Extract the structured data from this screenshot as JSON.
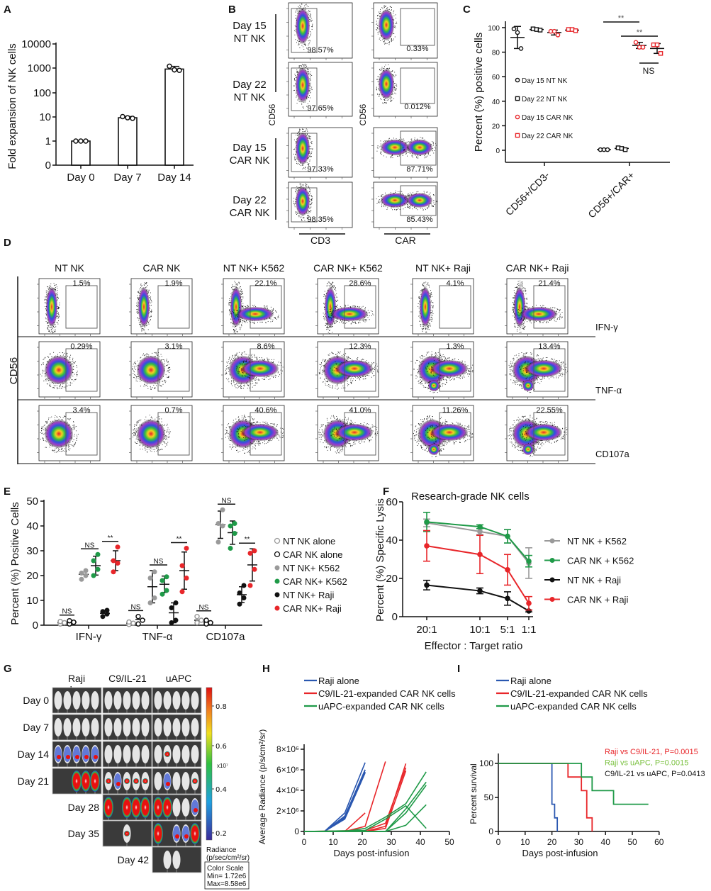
{
  "panel_labels": [
    "A",
    "B",
    "C",
    "D",
    "E",
    "F",
    "G",
    "H",
    "I"
  ],
  "panel_b": {
    "row_labels": [
      [
        "Day 15",
        "NT NK"
      ],
      [
        "Day 22",
        "NT NK"
      ],
      [
        "Day 15",
        "CAR NK"
      ],
      [
        "Day 22",
        "CAR NK"
      ]
    ],
    "x_labels": [
      "CD3",
      "CAR"
    ],
    "y_label": "CD56",
    "gate_percent": [
      [
        "98.57%",
        "97.65%",
        "97.33%",
        "98.35%"
      ],
      [
        "0.33%",
        "0.012%",
        "87.71%",
        "85.43%"
      ]
    ]
  },
  "panel_d": {
    "columns": [
      "NT NK",
      "CAR NK",
      "NT NK+ K562",
      "CAR NK+ K562",
      "NT NK+ Raji",
      "CAR NK+ Raji"
    ],
    "rows": [
      "IFN-γ",
      "TNF-α",
      "CD107a"
    ],
    "y_label": "CD56",
    "gate_percent": [
      [
        "1.5%",
        "1.9%",
        "22.1%",
        "28.6%",
        "4.1%",
        "21.4%"
      ],
      [
        "0.29%",
        "3.1%",
        "8.6%",
        "12.3%",
        "1.3%",
        "13.4%"
      ],
      [
        "3.4%",
        "0.7%",
        "40.6%",
        "41.0%",
        "11.26%",
        "22.55%"
      ]
    ]
  },
  "panel_g": {
    "columns": [
      [
        "Raji",
        "alone"
      ],
      [
        "C9/IL-21"
      ],
      [
        "uAPC"
      ]
    ],
    "rows": [
      "Day 0",
      "Day 7",
      "Day 14",
      "Day 21",
      "Day 28",
      "Day 35",
      "Day 42"
    ],
    "colorbar_ticks": [
      "0.8",
      "0.6",
      "0.4",
      "0.2"
    ],
    "colorbar_multiplier": "x10⁷",
    "radiance_label": [
      "Radiance",
      "(p/sec/cm²/sr)"
    ],
    "color_scale": [
      "Color Scale",
      "Min= 1.72e6",
      "Max=8.58e6"
    ]
  },
  "colors": {
    "black": "#111111",
    "red": "#e8262a",
    "green": "#1f9a48",
    "grey": "#9a9a9a",
    "blue": "#2a57b0",
    "lightgreen": "#7cc242"
  },
  "chart_data": [
    {
      "panel": "A",
      "type": "bar",
      "categories": [
        "Day 0",
        "Day 7",
        "Day 14"
      ],
      "values": [
        1,
        9,
        880
      ],
      "error": [
        0.05,
        1,
        250
      ],
      "points": [
        [
          1,
          1,
          1
        ],
        [
          10,
          9,
          8.5
        ],
        [
          1150,
          820,
          780
        ]
      ],
      "ylabel": "Fold expansion of NK cells",
      "yscale": "log",
      "yticks": [
        "0",
        "1",
        "10",
        "100",
        "1000",
        "10000"
      ]
    },
    {
      "panel": "C",
      "type": "scatter",
      "categories": [
        "CD56+/CD3-",
        "CD56+/CAR+"
      ],
      "ylabel": "Percent (%) positive cells",
      "ylim": [
        0,
        100
      ],
      "yticks": [
        "0",
        "20",
        "40",
        "60",
        "80",
        "100"
      ],
      "series": [
        {
          "name": "Day 15 NT NK",
          "color": "black",
          "marker": "circle",
          "means": [
            92,
            0.5
          ],
          "sd": [
            9,
            0.3
          ],
          "points": [
            [
              99,
              96,
              83
            ],
            [
              0.5,
              0.5,
              0.5
            ]
          ]
        },
        {
          "name": "Day 22 NT NK",
          "color": "black",
          "marker": "square",
          "means": [
            98.5,
            1.5
          ],
          "sd": [
            0.8,
            0.8
          ],
          "points": [
            [
              99,
              98.5,
              98
            ],
            [
              2,
              1.5,
              0.5
            ]
          ]
        },
        {
          "name": "Day 15 CAR NK",
          "color": "red",
          "marker": "circle",
          "means": [
            96,
            85.5
          ],
          "sd": [
            2,
            2.5
          ],
          "points": [
            [
              97,
              97,
              94
            ],
            [
              88,
              84,
              84
            ]
          ]
        },
        {
          "name": "Day 22 CAR NK",
          "color": "red",
          "marker": "square",
          "means": [
            98,
            83
          ],
          "sd": [
            0.8,
            4
          ],
          "points": [
            [
              98.5,
              98.5,
              97.5
            ],
            [
              86,
              86,
              79
            ]
          ]
        }
      ],
      "annotations": [
        {
          "label": "**",
          "between": [
            "Day 15 NT NK",
            "Day 15 CAR NK"
          ],
          "category": "CD56+/CAR+"
        },
        {
          "label": "**",
          "between": [
            "Day 22 NT NK",
            "Day 22 CAR NK"
          ],
          "category": "CD56+/CAR+"
        },
        {
          "label": "NS",
          "between": [
            "Day 15 CAR NK",
            "Day 22 CAR NK"
          ],
          "category": "CD56+/CAR+"
        }
      ]
    },
    {
      "panel": "E",
      "type": "scatter",
      "categories": [
        "IFN-γ",
        "TNF-α",
        "CD107a"
      ],
      "ylabel": "Percent (%) Positive Cells",
      "ylim": [
        0,
        50
      ],
      "yticks": [
        "0",
        "10",
        "20",
        "30",
        "40",
        "50"
      ],
      "series": [
        {
          "name": "NT NK alone",
          "color": "grey",
          "marker": "open",
          "means": [
            1,
            0.8,
            2
          ],
          "sd": [
            0.5,
            0.5,
            1
          ],
          "points": [
            [
              0.5,
              1,
              1.5
            ],
            [
              0.3,
              0.8,
              1.3
            ],
            [
              1,
              2,
              3.5
            ]
          ]
        },
        {
          "name": "CAR NK alone",
          "color": "black",
          "marker": "open",
          "means": [
            1.2,
            2.3,
            1.2
          ],
          "sd": [
            0.6,
            1.3,
            0.6
          ],
          "points": [
            [
              0.5,
              1.2,
              1.8
            ],
            [
              0.5,
              2,
              3.5
            ],
            [
              0.5,
              1,
              2
            ]
          ]
        },
        {
          "name": "NT NK+ K562",
          "color": "grey",
          "marker": "filled",
          "means": [
            20.5,
            15.5,
            40.5
          ],
          "sd": [
            1.5,
            6.5,
            5.5
          ],
          "points": [
            [
              18.5,
              20,
              21,
              22
            ],
            [
              9,
              11,
              19,
              21.5
            ],
            [
              33.5,
              40,
              41,
              46.5
            ]
          ]
        },
        {
          "name": "CAR NK+ K562",
          "color": "green",
          "marker": "filled",
          "means": [
            24,
            16.5,
            37.3
          ],
          "sd": [
            3.8,
            3.3,
            4.7
          ],
          "points": [
            [
              20,
              22.5,
              26,
              28.5
            ],
            [
              12.5,
              14,
              18,
              19.5
            ],
            [
              31,
              37,
              40,
              41
            ]
          ]
        },
        {
          "name": "NT NK+ Raji",
          "color": "black",
          "marker": "filled",
          "means": [
            4.8,
            5,
            12.3
          ],
          "sd": [
            1,
            4,
            3.2
          ],
          "points": [
            [
              3.5,
              4.5,
              5.5,
              6
            ],
            [
              1,
              2,
              7,
              9
            ],
            [
              8.5,
              11,
              13,
              16
            ]
          ]
        },
        {
          "name": "CAR NK+ Raji",
          "color": "red",
          "marker": "filled",
          "means": [
            26,
            22,
            24.3
          ],
          "sd": [
            4,
            7.5,
            6.5
          ],
          "points": [
            [
              21.5,
              25,
              26,
              31.5
            ],
            [
              13.5,
              19,
              24,
              31
            ],
            [
              16,
              22.5,
              29,
              30
            ]
          ]
        }
      ],
      "annotations": [
        {
          "label": "NS",
          "pair": [
            0,
            1
          ]
        },
        {
          "label": "NS",
          "pair": [
            2,
            3
          ]
        },
        {
          "label": "**",
          "pair": [
            4,
            5
          ]
        }
      ]
    },
    {
      "panel": "F",
      "type": "line",
      "title": "Research-grade NK cells",
      "categories": [
        "20:1",
        "10:1",
        "5:1",
        "1:1"
      ],
      "xlabel": "Effector : Target ratio",
      "ylabel": "Percent (%) Specific Lysis",
      "ylim": [
        0,
        60
      ],
      "yticks": [
        "0",
        "20",
        "40",
        "60"
      ],
      "legend": "right",
      "series": [
        {
          "name": "NT NK + K562",
          "color": "grey",
          "values": [
            49,
            44.5,
            42,
            28
          ],
          "error": [
            2,
            1.5,
            3.5,
            8
          ]
        },
        {
          "name": "CAR NK + K562",
          "color": "green",
          "values": [
            49.5,
            47,
            42,
            29
          ],
          "error": [
            5,
            1,
            3.5,
            3
          ]
        },
        {
          "name": "NT NK + Raji",
          "color": "black",
          "values": [
            16.5,
            13.5,
            9.5,
            3
          ],
          "error": [
            2.5,
            1.5,
            3.5,
            0.5
          ]
        },
        {
          "name": "CAR NK + Raji",
          "color": "red",
          "values": [
            37,
            32.5,
            24.5,
            7
          ],
          "error": [
            8,
            10,
            8,
            3.5
          ]
        }
      ]
    },
    {
      "panel": "H",
      "type": "line",
      "xlabel": "Days post-infusion",
      "ylabel": "Average Radiance (p/s/cm²/sr)",
      "xlim": [
        0,
        50
      ],
      "xticks": [
        "0",
        "10",
        "20",
        "30",
        "40",
        "50"
      ],
      "ylim": [
        0,
        8000000
      ],
      "yticks": [
        "0",
        "2×10⁶",
        "4×10⁶",
        "6×10⁶",
        "8×10⁶"
      ],
      "legend": "top",
      "series": [
        {
          "name": "Raji alone",
          "color": "blue",
          "mice": [
            [
              [
                0,
                0
              ],
              [
                7,
                0
              ],
              [
                14,
                1200000
              ],
              [
                21,
                5700000
              ]
            ],
            [
              [
                0,
                0
              ],
              [
                7,
                0
              ],
              [
                14,
                1400000
              ],
              [
                21,
                6000000
              ]
            ],
            [
              [
                0,
                0
              ],
              [
                7,
                0
              ],
              [
                14,
                1800000
              ],
              [
                21,
                6700000
              ]
            ],
            [
              [
                0,
                0
              ],
              [
                7,
                0
              ],
              [
                14,
                1300000
              ],
              [
                21,
                5800000
              ]
            ],
            [
              [
                0,
                0
              ],
              [
                7,
                0
              ],
              [
                14,
                1500000
              ],
              [
                21,
                6000000
              ]
            ]
          ]
        },
        {
          "name": "C9/IL-21-expanded CAR NK cells",
          "color": "red",
          "mice": [
            [
              [
                0,
                0
              ],
              [
                14,
                0
              ],
              [
                21,
                1800000
              ]
            ],
            [
              [
                0,
                0
              ],
              [
                14,
                0
              ],
              [
                21,
                500000
              ],
              [
                28,
                6800000
              ]
            ],
            [
              [
                0,
                0
              ],
              [
                21,
                0
              ],
              [
                28,
                500000
              ],
              [
                35,
                6600000
              ]
            ],
            [
              [
                0,
                0
              ],
              [
                21,
                0
              ],
              [
                28,
                300000
              ],
              [
                35,
                5900000
              ]
            ],
            [
              [
                0,
                0
              ],
              [
                21,
                100000
              ],
              [
                28,
                800000
              ],
              [
                35,
                6200000
              ]
            ]
          ]
        },
        {
          "name": "uAPC-expanded CAR NK cells",
          "color": "green",
          "mice": [
            [
              [
                0,
                0
              ],
              [
                14,
                0
              ],
              [
                21,
                300000
              ],
              [
                28,
                1400000
              ],
              [
                35,
                2700000
              ],
              [
                42,
                5800000
              ]
            ],
            [
              [
                0,
                0
              ],
              [
                21,
                100000
              ],
              [
                28,
                1200000
              ],
              [
                35,
                2500000
              ],
              [
                42,
                300000
              ]
            ],
            [
              [
                0,
                0
              ],
              [
                28,
                0
              ],
              [
                35,
                2200000
              ],
              [
                42,
                4800000
              ]
            ],
            [
              [
                0,
                0
              ],
              [
                28,
                0
              ],
              [
                35,
                600000
              ],
              [
                42,
                2600000
              ]
            ],
            [
              [
                0,
                0
              ],
              [
                21,
                0
              ],
              [
                28,
                0
              ],
              [
                35,
                1800000
              ],
              [
                42,
                4500000
              ]
            ]
          ]
        }
      ]
    },
    {
      "panel": "I",
      "type": "line",
      "xlabel": "Days post-infusion",
      "ylabel": "Percent survival",
      "xlim": [
        0,
        60
      ],
      "xticks": [
        "0",
        "10",
        "20",
        "30",
        "40",
        "50",
        "60"
      ],
      "ylim": [
        0,
        100
      ],
      "yticks": [
        "0",
        "50",
        "100"
      ],
      "legend": "top",
      "series": [
        {
          "name": "Raji alone",
          "color": "blue",
          "steps": [
            [
              0,
              100
            ],
            [
              20,
              40
            ],
            [
              21,
              20
            ],
            [
              22,
              0
            ]
          ]
        },
        {
          "name": "C9/IL-21-expanded CAR NK cells",
          "color": "red",
          "steps": [
            [
              0,
              100
            ],
            [
              26,
              80
            ],
            [
              31,
              60
            ],
            [
              33,
              20
            ],
            [
              35,
              0
            ]
          ]
        },
        {
          "name": "uAPC-expanded CAR NK cells",
          "color": "green",
          "steps": [
            [
              0,
              100
            ],
            [
              31,
              80
            ],
            [
              35,
              60
            ],
            [
              43,
              40
            ],
            [
              56,
              40
            ]
          ]
        }
      ],
      "annotations": [
        {
          "text": "Raji vs C9/IL-21, P=0.0015",
          "color": "red"
        },
        {
          "text": "Raji vs uAPC, P=0.0015",
          "color": "lightgreen"
        },
        {
          "text": "C9/IL-21 vs uAPC, P=0.0413",
          "color": "black"
        }
      ]
    }
  ]
}
